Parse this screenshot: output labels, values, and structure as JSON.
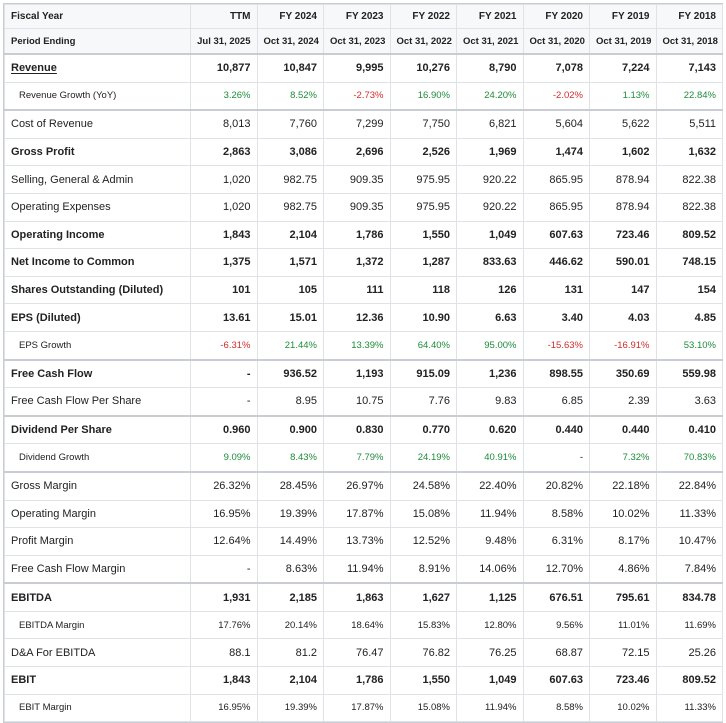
{
  "header": {
    "fiscal_year_label": "Fiscal Year",
    "period_ending_label": "Period Ending",
    "columns": [
      "TTM",
      "FY 2024",
      "FY 2023",
      "FY 2022",
      "FY 2021",
      "FY 2020",
      "FY 2019",
      "FY 2018"
    ],
    "dates": [
      "Jul 31, 2025",
      "Oct 31, 2024",
      "Oct 31, 2023",
      "Oct 31, 2022",
      "Oct 31, 2021",
      "Oct 31, 2020",
      "Oct 31, 2019",
      "Oct 31, 2018"
    ]
  },
  "colors": {
    "positive": "#1e8c3a",
    "negative": "#d12d2d"
  },
  "rows": [
    {
      "label": "Revenue",
      "style": "bold underline",
      "values": [
        "10,877",
        "10,847",
        "9,995",
        "10,276",
        "8,790",
        "7,078",
        "7,224",
        "7,143"
      ]
    },
    {
      "label": "Revenue Growth (YoY)",
      "style": "sub",
      "values": [
        "3.26%",
        "8.52%",
        "-2.73%",
        "16.90%",
        "24.20%",
        "-2.02%",
        "1.13%",
        "22.84%"
      ]
    },
    {
      "label": "Cost of Revenue",
      "style": "sep",
      "values": [
        "8,013",
        "7,760",
        "7,299",
        "7,750",
        "6,821",
        "5,604",
        "5,622",
        "5,511"
      ]
    },
    {
      "label": "Gross Profit",
      "style": "bold",
      "values": [
        "2,863",
        "3,086",
        "2,696",
        "2,526",
        "1,969",
        "1,474",
        "1,602",
        "1,632"
      ]
    },
    {
      "label": "Selling, General & Admin",
      "style": "",
      "values": [
        "1,020",
        "982.75",
        "909.35",
        "975.95",
        "920.22",
        "865.95",
        "878.94",
        "822.38"
      ]
    },
    {
      "label": "Operating Expenses",
      "style": "",
      "values": [
        "1,020",
        "982.75",
        "909.35",
        "975.95",
        "920.22",
        "865.95",
        "878.94",
        "822.38"
      ]
    },
    {
      "label": "Operating Income",
      "style": "bold",
      "values": [
        "1,843",
        "2,104",
        "1,786",
        "1,550",
        "1,049",
        "607.63",
        "723.46",
        "809.52"
      ]
    },
    {
      "label": "Net Income to Common",
      "style": "bold",
      "values": [
        "1,375",
        "1,571",
        "1,372",
        "1,287",
        "833.63",
        "446.62",
        "590.01",
        "748.15"
      ]
    },
    {
      "label": "Shares Outstanding (Diluted)",
      "style": "bold",
      "values": [
        "101",
        "105",
        "111",
        "118",
        "126",
        "131",
        "147",
        "154"
      ]
    },
    {
      "label": "EPS (Diluted)",
      "style": "bold",
      "values": [
        "13.61",
        "15.01",
        "12.36",
        "10.90",
        "6.63",
        "3.40",
        "4.03",
        "4.85"
      ]
    },
    {
      "label": "EPS Growth",
      "style": "sub",
      "values": [
        "-6.31%",
        "21.44%",
        "13.39%",
        "64.40%",
        "95.00%",
        "-15.63%",
        "-16.91%",
        "53.10%"
      ]
    },
    {
      "label": "Free Cash Flow",
      "style": "bold sep",
      "values": [
        "-",
        "936.52",
        "1,193",
        "915.09",
        "1,236",
        "898.55",
        "350.69",
        "559.98"
      ]
    },
    {
      "label": "Free Cash Flow Per Share",
      "style": "",
      "values": [
        "-",
        "8.95",
        "10.75",
        "7.76",
        "9.83",
        "6.85",
        "2.39",
        "3.63"
      ]
    },
    {
      "label": "Dividend Per Share",
      "style": "bold sep",
      "values": [
        "0.960",
        "0.900",
        "0.830",
        "0.770",
        "0.620",
        "0.440",
        "0.440",
        "0.410"
      ]
    },
    {
      "label": "Dividend Growth",
      "style": "sub",
      "values": [
        "9.09%",
        "8.43%",
        "7.79%",
        "24.19%",
        "40.91%",
        "-",
        "7.32%",
        "70.83%"
      ]
    },
    {
      "label": "Gross Margin",
      "style": "sep",
      "values": [
        "26.32%",
        "28.45%",
        "26.97%",
        "24.58%",
        "22.40%",
        "20.82%",
        "22.18%",
        "22.84%"
      ]
    },
    {
      "label": "Operating Margin",
      "style": "",
      "values": [
        "16.95%",
        "19.39%",
        "17.87%",
        "15.08%",
        "11.94%",
        "8.58%",
        "10.02%",
        "11.33%"
      ]
    },
    {
      "label": "Profit Margin",
      "style": "",
      "values": [
        "12.64%",
        "14.49%",
        "13.73%",
        "12.52%",
        "9.48%",
        "6.31%",
        "8.17%",
        "10.47%"
      ]
    },
    {
      "label": "Free Cash Flow Margin",
      "style": "",
      "values": [
        "-",
        "8.63%",
        "11.94%",
        "8.91%",
        "14.06%",
        "12.70%",
        "4.86%",
        "7.84%"
      ]
    },
    {
      "label": "EBITDA",
      "style": "bold sep",
      "values": [
        "1,931",
        "2,185",
        "1,863",
        "1,627",
        "1,125",
        "676.51",
        "795.61",
        "834.78"
      ]
    },
    {
      "label": "EBITDA Margin",
      "style": "sub",
      "values": [
        "17.76%",
        "20.14%",
        "18.64%",
        "15.83%",
        "12.80%",
        "9.56%",
        "11.01%",
        "11.69%"
      ]
    },
    {
      "label": "D&A For EBITDA",
      "style": "",
      "values": [
        "88.1",
        "81.2",
        "76.47",
        "76.82",
        "76.25",
        "68.87",
        "72.15",
        "25.26"
      ]
    },
    {
      "label": "EBIT",
      "style": "bold",
      "values": [
        "1,843",
        "2,104",
        "1,786",
        "1,550",
        "1,049",
        "607.63",
        "723.46",
        "809.52"
      ]
    },
    {
      "label": "EBIT Margin",
      "style": "sub",
      "values": [
        "16.95%",
        "19.39%",
        "17.87%",
        "15.08%",
        "11.94%",
        "8.58%",
        "10.02%",
        "11.33%"
      ]
    }
  ],
  "growth_rows": [
    "Revenue Growth (YoY)",
    "EPS Growth",
    "Dividend Growth"
  ]
}
